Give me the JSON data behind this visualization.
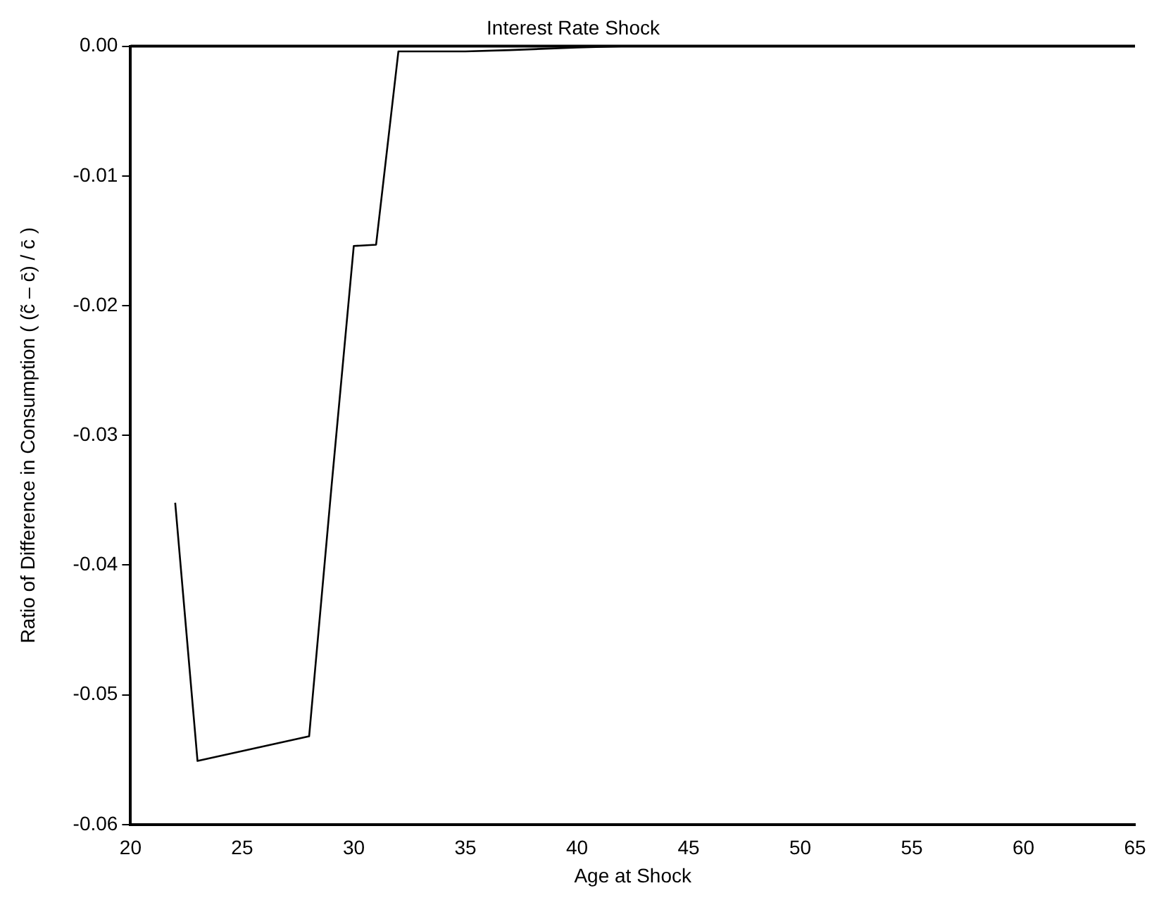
{
  "chart_data": {
    "type": "line",
    "title": "Interest Rate Shock",
    "xlabel": "Age at Shock",
    "ylabel": "Ratio of Difference in Consumption ( (c̃ – c̄) / c̄ )",
    "x": [
      22,
      23,
      28,
      29,
      30,
      31,
      32,
      35,
      37,
      40,
      42,
      45,
      50,
      55,
      60,
      64
    ],
    "series": [
      {
        "color": "#000000",
        "values": [
          -0.0352,
          -0.0551,
          -0.0532,
          -0.034,
          -0.0154,
          -0.0153,
          -0.0004,
          -0.0004,
          -0.0003,
          -0.0001,
          0,
          0,
          0,
          0,
          0,
          0
        ]
      }
    ],
    "xlim": [
      20,
      65
    ],
    "xticks": [
      20,
      25,
      30,
      35,
      40,
      45,
      50,
      55,
      60,
      65
    ],
    "ylim": [
      -0.06,
      0
    ],
    "yticks": [
      {
        "value": -0.06,
        "label": "-0.06"
      },
      {
        "value": -0.05,
        "label": "-0.05"
      },
      {
        "value": -0.04,
        "label": "-0.04"
      },
      {
        "value": -0.03,
        "label": "-0.03"
      },
      {
        "value": -0.02,
        "label": "-0.02"
      },
      {
        "value": -0.01,
        "label": "-0.01"
      },
      {
        "value": 0,
        "label": "0.00"
      }
    ],
    "grid": false,
    "legend": false,
    "marker": "none",
    "line_style": "solid"
  }
}
